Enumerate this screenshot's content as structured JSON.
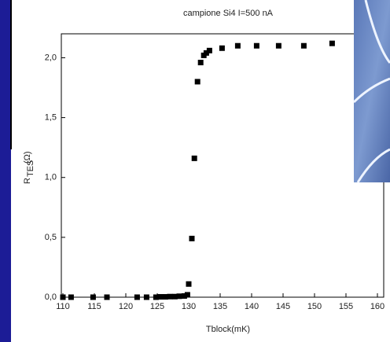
{
  "chart_data": {
    "type": "scatter",
    "title": "campione Si4 I=500 nA",
    "x_label": "Tblock(mK)",
    "y_label": "R",
    "y_label_subscript": "TES",
    "y_label_unit": "(Ω)",
    "color": "#000000",
    "x": [
      110,
      111.3,
      114.8,
      117,
      121.8,
      123.3,
      124.8,
      125.5,
      126.3,
      127,
      127.8,
      128.5,
      129.3,
      129.8,
      130,
      130.5,
      130.9,
      131.4,
      131.9,
      132.4,
      132.8,
      133.3,
      135.3,
      137.8,
      140.8,
      144.3,
      148.3,
      152.8
    ],
    "values": [
      0,
      0,
      0,
      0,
      0,
      0,
      0,
      0.003,
      0.003,
      0.005,
      0.005,
      0.008,
      0.01,
      0.02,
      0.11,
      0.49,
      1.16,
      1.8,
      1.96,
      2.02,
      2.04,
      2.06,
      2.08,
      2.1,
      2.1,
      2.1,
      2.1,
      2.12
    ],
    "xlim": [
      110,
      160
    ],
    "ylim": [
      0,
      2.2
    ],
    "xticks": [
      110,
      115,
      120,
      125,
      130,
      135,
      140,
      145,
      150,
      155,
      160
    ],
    "yticks": [
      {
        "value": 0,
        "label": "0,0"
      },
      {
        "value": 0.5,
        "label": "0,5"
      },
      {
        "value": 1,
        "label": "1,0"
      },
      {
        "value": 1.5,
        "label": "1,5"
      },
      {
        "value": 2,
        "label": "2,0"
      }
    ]
  }
}
